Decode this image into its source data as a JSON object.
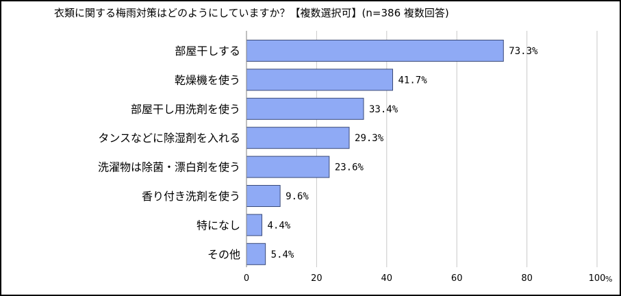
{
  "chart_data": {
    "type": "bar",
    "orientation": "horizontal",
    "title": "衣類に関する梅雨対策はどのようにしていますか？【複数選択可】(n=386 複数回答)",
    "categories": [
      "部屋干しする",
      "乾燥機を使う",
      "部屋干し用洗剤を使う",
      "タンスなどに除湿剤を入れる",
      "洗濯物は除菌・漂白剤を使う",
      "香り付き洗剤を使う",
      "特になし",
      "その他"
    ],
    "values": [
      73.3,
      41.7,
      33.4,
      29.3,
      23.6,
      9.6,
      4.4,
      5.4
    ],
    "value_labels": [
      "73.3%",
      "41.7%",
      "33.4%",
      "29.3%",
      "23.6%",
      "9.6%",
      "4.4%",
      "5.4%"
    ],
    "xlim": [
      0,
      100
    ],
    "x_ticks": [
      0,
      20,
      40,
      60,
      80,
      100
    ],
    "x_tick_labels": [
      "0",
      "20",
      "40",
      "60",
      "80",
      "100"
    ],
    "x_unit": "%",
    "grid": true,
    "legend": "none",
    "bar_color": "#8faaf5",
    "bar_border_color": "#3a4a78",
    "grid_color": "#c8c8c8"
  }
}
